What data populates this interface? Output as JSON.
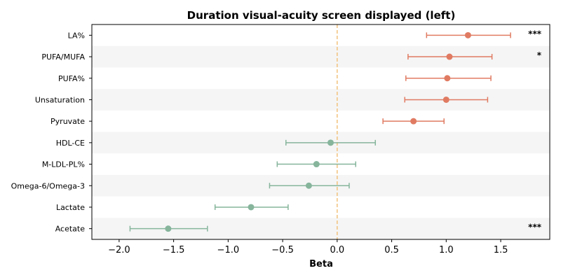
{
  "chart_data": {
    "type": "forest",
    "title": "Duration visual-acuity screen displayed (left)",
    "xlabel": "Beta",
    "xlim": [
      -2.25,
      1.95
    ],
    "xticks": [
      -2.0,
      -1.5,
      -1.0,
      -0.5,
      0.0,
      0.5,
      1.0,
      1.5
    ],
    "xtick_labels": [
      "−2.0",
      "−1.5",
      "−1.0",
      "−0.5",
      "0.0",
      "0.5",
      "1.0",
      "1.5"
    ],
    "reference_line": 0,
    "alternating_row_shading": true,
    "colors": {
      "positive": "#E07B62",
      "negative": "#86B59C",
      "reference": "#F2C27B",
      "band": "#F5F5F5"
    },
    "rows": [
      {
        "label": "LA%",
        "beta": 1.2,
        "ci_low": 0.82,
        "ci_high": 1.59,
        "significance": "***"
      },
      {
        "label": "PUFA/MUFA",
        "beta": 1.03,
        "ci_low": 0.65,
        "ci_high": 1.42,
        "significance": "*"
      },
      {
        "label": "PUFA%",
        "beta": 1.01,
        "ci_low": 0.63,
        "ci_high": 1.41,
        "significance": ""
      },
      {
        "label": "Unsaturation",
        "beta": 1.0,
        "ci_low": 0.62,
        "ci_high": 1.38,
        "significance": ""
      },
      {
        "label": "Pyruvate",
        "beta": 0.7,
        "ci_low": 0.42,
        "ci_high": 0.98,
        "significance": ""
      },
      {
        "label": "HDL-CE",
        "beta": -0.06,
        "ci_low": -0.47,
        "ci_high": 0.35,
        "significance": ""
      },
      {
        "label": "M-LDL-PL%",
        "beta": -0.19,
        "ci_low": -0.55,
        "ci_high": 0.17,
        "significance": ""
      },
      {
        "label": "Omega-6/Omega-3",
        "beta": -0.26,
        "ci_low": -0.62,
        "ci_high": 0.11,
        "significance": ""
      },
      {
        "label": "Lactate",
        "beta": -0.79,
        "ci_low": -1.12,
        "ci_high": -0.45,
        "significance": ""
      },
      {
        "label": "Acetate",
        "beta": -1.55,
        "ci_low": -1.9,
        "ci_high": -1.19,
        "significance": "***"
      }
    ]
  }
}
